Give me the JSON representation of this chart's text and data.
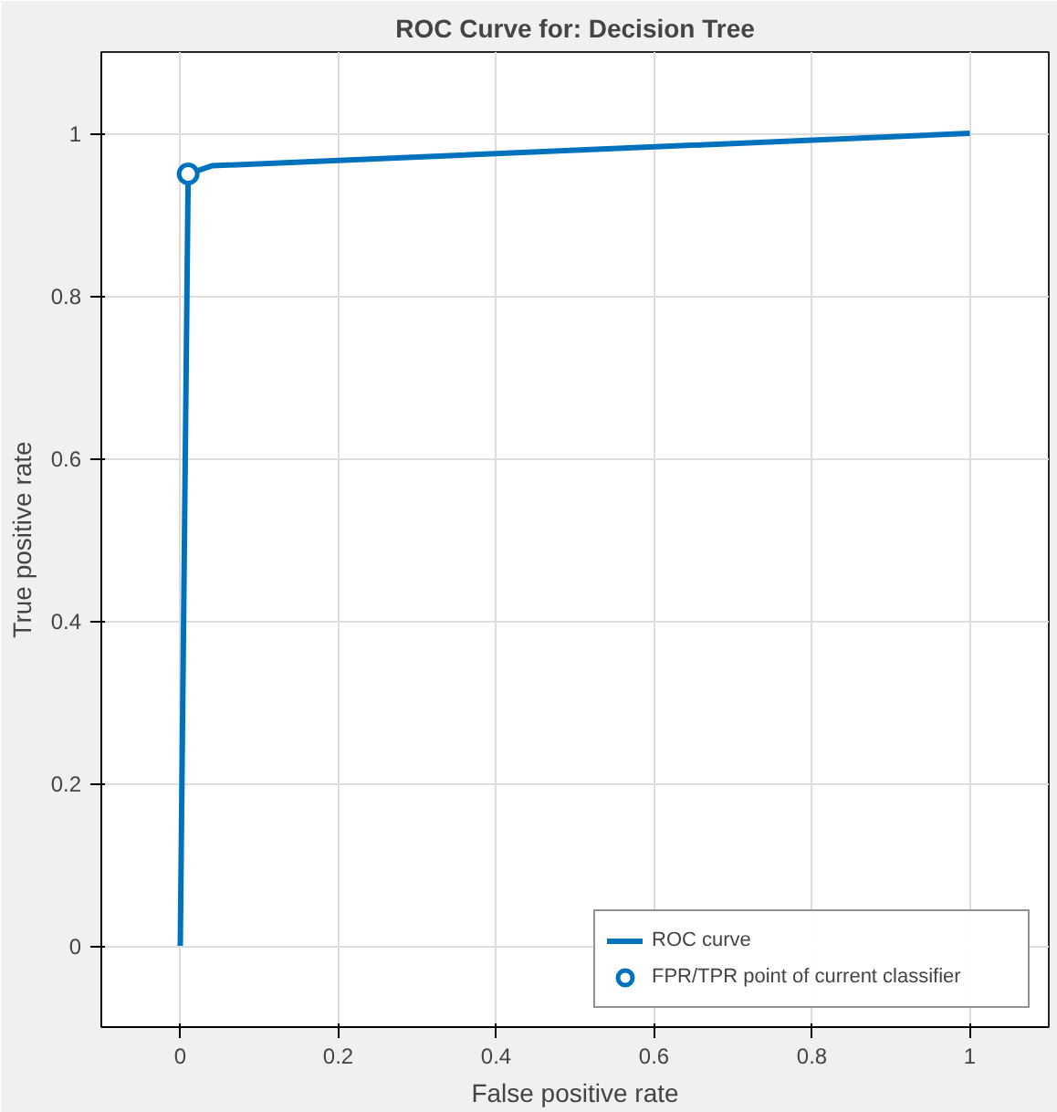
{
  "chart_data": {
    "type": "line",
    "title": "ROC Curve for: Decision Tree",
    "xlabel": "False positive rate",
    "ylabel": "True positive rate",
    "xlim": [
      -0.1,
      1.1
    ],
    "ylim": [
      -0.1,
      1.1
    ],
    "xticks": [
      0,
      0.2,
      0.4,
      0.6,
      0.8,
      1
    ],
    "yticks": [
      0,
      0.2,
      0.4,
      0.6,
      0.8,
      1
    ],
    "grid": true,
    "legend": "bottom right",
    "series": [
      {
        "name": "ROC curve",
        "color": "#0072bd",
        "x": [
          0,
          0.01,
          0.04,
          1
        ],
        "values": [
          0,
          0.95,
          0.96,
          1
        ]
      },
      {
        "name": "FPR/TPR point of current classifier",
        "color": "#0072bd",
        "type": "scatter",
        "marker": "circle",
        "x": [
          0.01
        ],
        "values": [
          0.95
        ]
      }
    ]
  }
}
